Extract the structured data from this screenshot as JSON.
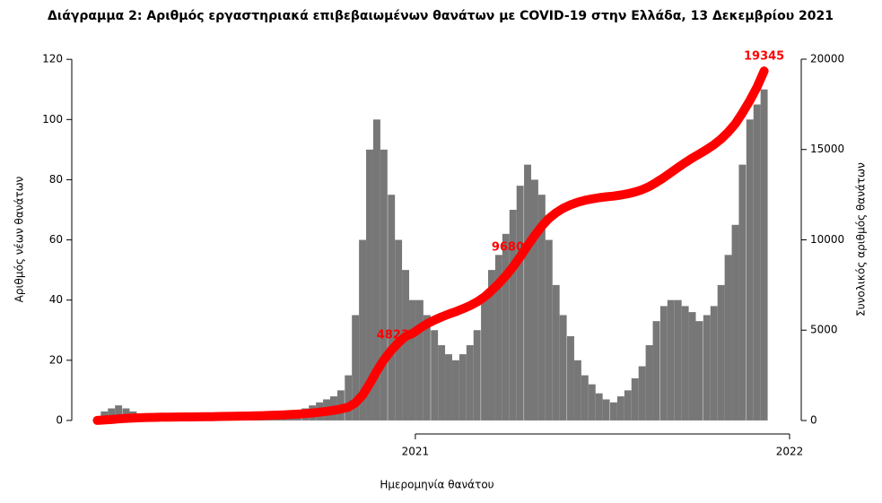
{
  "chart_data": {
    "type": "bar_line",
    "title": "Διάγραμμα 2: Αριθμός εργαστηριακά επιβεβαιωμένων θανάτων με COVID-19 στην Ελλάδα, 13 Δεκεμβρίου 2021",
    "xlabel": "Ημερομηνία θανάτου",
    "ylabel": "Αριθμός νέων θανάτων",
    "y2label": "Συνολικός αριθμός θανάτων",
    "xlim": [
      2020.082,
      2022.036
    ],
    "xticks": [
      2021,
      2022
    ],
    "ylim": [
      -3.3,
      127.8
    ],
    "yticks": [
      0,
      20,
      40,
      60,
      80,
      100,
      120
    ],
    "y2lim": [
      -546,
      21290
    ],
    "y2ticks": [
      0,
      5000,
      10000,
      15000,
      20000
    ],
    "x": [
      2020.15,
      2020.169,
      2020.188,
      2020.207,
      2020.227,
      2020.246,
      2020.265,
      2020.284,
      2020.303,
      2020.322,
      2020.342,
      2020.361,
      2020.38,
      2020.399,
      2020.418,
      2020.437,
      2020.457,
      2020.476,
      2020.495,
      2020.514,
      2020.533,
      2020.552,
      2020.572,
      2020.591,
      2020.61,
      2020.629,
      2020.648,
      2020.667,
      2020.686,
      2020.706,
      2020.725,
      2020.744,
      2020.763,
      2020.782,
      2020.801,
      2020.821,
      2020.84,
      2020.859,
      2020.878,
      2020.897,
      2020.916,
      2020.936,
      2020.955,
      2020.974,
      2020.993,
      2021.012,
      2021.031,
      2021.051,
      2021.07,
      2021.089,
      2021.108,
      2021.127,
      2021.146,
      2021.165,
      2021.185,
      2021.204,
      2021.223,
      2021.242,
      2021.261,
      2021.28,
      2021.3,
      2021.319,
      2021.338,
      2021.357,
      2021.376,
      2021.395,
      2021.415,
      2021.434,
      2021.453,
      2021.472,
      2021.491,
      2021.51,
      2021.53,
      2021.549,
      2021.568,
      2021.587,
      2021.606,
      2021.625,
      2021.644,
      2021.664,
      2021.683,
      2021.702,
      2021.721,
      2021.74,
      2021.759,
      2021.779,
      2021.798,
      2021.817,
      2021.836,
      2021.855,
      2021.874,
      2021.894,
      2021.913,
      2021.932
    ],
    "series": [
      {
        "type": "bar",
        "color": "#777777",
        "values": [
          1,
          3,
          4,
          5,
          4,
          3,
          2,
          2,
          1,
          1,
          1,
          0.5,
          0.5,
          0.5,
          0.5,
          0.5,
          1,
          1,
          1,
          1,
          1,
          1,
          1,
          2,
          2,
          2,
          2,
          3,
          3,
          4,
          5,
          6,
          7,
          8,
          10,
          15,
          35,
          60,
          90,
          100,
          90,
          75,
          60,
          50,
          40,
          40,
          35,
          30,
          25,
          22,
          20,
          22,
          25,
          30,
          40,
          50,
          55,
          62,
          70,
          78,
          85,
          80,
          75,
          60,
          45,
          35,
          28,
          20,
          15,
          12,
          9,
          7,
          6,
          8,
          10,
          14,
          18,
          25,
          33,
          38,
          40,
          40,
          38,
          36,
          33,
          35,
          38,
          45,
          55,
          65,
          85,
          100,
          105,
          110
        ]
      },
      {
        "type": "line",
        "axis": "y2",
        "color": "#ff0000",
        "values": [
          7,
          28,
          56,
          91,
          119,
          140,
          154,
          168,
          175,
          182,
          189,
          193,
          196,
          200,
          203,
          207,
          214,
          221,
          228,
          235,
          242,
          249,
          256,
          270,
          284,
          298,
          312,
          333,
          354,
          382,
          417,
          459,
          508,
          564,
          634,
          739,
          984,
          1404,
          2034,
          2734,
          3364,
          3889,
          4309,
          4659,
          4823,
          5103,
          5348,
          5558,
          5733,
          5887,
          6027,
          6181,
          6356,
          6566,
          6846,
          7196,
          7581,
          8015,
          8505,
          9051,
          9680,
          10240,
          10765,
          11185,
          11500,
          11745,
          11941,
          12081,
          12186,
          12270,
          12333,
          12382,
          12424,
          12480,
          12550,
          12648,
          12774,
          12949,
          13180,
          13446,
          13726,
          14006,
          14272,
          14524,
          14755,
          15000,
          15266,
          15581,
          15966,
          16421,
          17016,
          17716,
          18451,
          19345
        ],
        "value_labels": [
          null,
          null,
          null,
          null,
          null,
          null,
          null,
          null,
          null,
          null,
          null,
          null,
          null,
          null,
          null,
          null,
          null,
          null,
          null,
          null,
          null,
          null,
          null,
          null,
          null,
          null,
          null,
          null,
          null,
          null,
          null,
          null,
          null,
          null,
          null,
          null,
          null,
          null,
          null,
          null,
          null,
          null,
          null,
          null,
          "4823",
          null,
          null,
          null,
          null,
          null,
          null,
          null,
          null,
          null,
          null,
          null,
          null,
          null,
          null,
          null,
          "9680",
          null,
          null,
          null,
          null,
          null,
          null,
          null,
          null,
          null,
          null,
          null,
          null,
          null,
          null,
          null,
          null,
          null,
          null,
          null,
          null,
          null,
          null,
          null,
          null,
          null,
          null,
          null,
          null,
          null,
          null,
          null,
          null,
          "19345"
        ]
      }
    ]
  }
}
